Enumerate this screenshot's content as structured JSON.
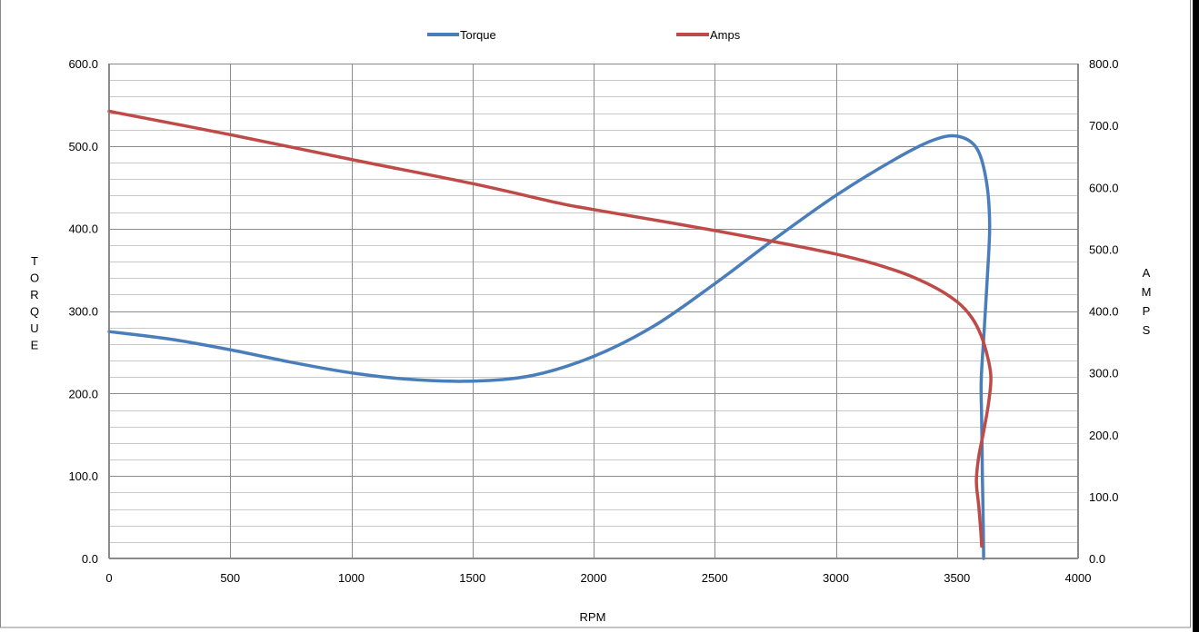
{
  "chart_data": {
    "type": "line",
    "title": "",
    "xlabel": "RPM",
    "ylabel": "TORQUE",
    "y2label": "AMPS",
    "xlim": [
      0,
      4000
    ],
    "ylim": [
      0,
      600
    ],
    "y2lim": [
      0,
      800
    ],
    "x_ticks": [
      0,
      500,
      1000,
      1500,
      2000,
      2500,
      3000,
      3500,
      4000
    ],
    "y_ticks": [
      "0.0",
      "100.0",
      "200.0",
      "300.0",
      "400.0",
      "500.0",
      "600.0"
    ],
    "y2_ticks": [
      "0.0",
      "100.0",
      "200.0",
      "300.0",
      "400.0",
      "500.0",
      "600.0",
      "700.0",
      "800.0"
    ],
    "grid": true,
    "legend_position": "top-center",
    "series": [
      {
        "name": "Torque",
        "axis": "left",
        "color": "#4a7ebb",
        "points": [
          [
            0,
            275
          ],
          [
            250,
            266
          ],
          [
            500,
            253
          ],
          [
            750,
            238
          ],
          [
            1000,
            225
          ],
          [
            1250,
            217
          ],
          [
            1500,
            215
          ],
          [
            1750,
            222
          ],
          [
            2000,
            245
          ],
          [
            2250,
            282
          ],
          [
            2500,
            333
          ],
          [
            2750,
            388
          ],
          [
            3000,
            440
          ],
          [
            3250,
            485
          ],
          [
            3400,
            507
          ],
          [
            3500,
            512
          ],
          [
            3580,
            498
          ],
          [
            3620,
            460
          ],
          [
            3635,
            405
          ],
          [
            3625,
            340
          ],
          [
            3612,
            275
          ],
          [
            3600,
            215
          ],
          [
            3602,
            170
          ],
          [
            3605,
            100
          ],
          [
            3608,
            50
          ],
          [
            3610,
            0
          ]
        ]
      },
      {
        "name": "Amps",
        "axis": "right",
        "color": "#be4b48",
        "points": [
          [
            0,
            723
          ],
          [
            500,
            685
          ],
          [
            1000,
            645
          ],
          [
            1500,
            606
          ],
          [
            1850,
            575
          ],
          [
            2000,
            564
          ],
          [
            2500,
            530
          ],
          [
            3000,
            492
          ],
          [
            3250,
            465
          ],
          [
            3400,
            440
          ],
          [
            3500,
            415
          ],
          [
            3560,
            390
          ],
          [
            3600,
            360
          ],
          [
            3630,
            320
          ],
          [
            3640,
            290
          ],
          [
            3630,
            250
          ],
          [
            3610,
            205
          ],
          [
            3590,
            165
          ],
          [
            3580,
            125
          ],
          [
            3590,
            85
          ],
          [
            3598,
            45
          ],
          [
            3602,
            20
          ]
        ]
      }
    ]
  }
}
